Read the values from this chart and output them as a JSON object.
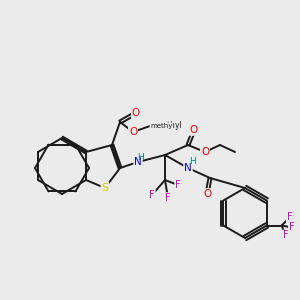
{
  "bg_color": "#ebebeb",
  "line_color": "#1a1a1a",
  "atom_colors": {
    "O": "#ff0000",
    "S": "#cccc00",
    "N": "#0000ff",
    "F": "#cc00cc",
    "H": "#008080",
    "C": "#1a1a1a"
  },
  "figsize": [
    3.0,
    3.0
  ],
  "dpi": 100
}
